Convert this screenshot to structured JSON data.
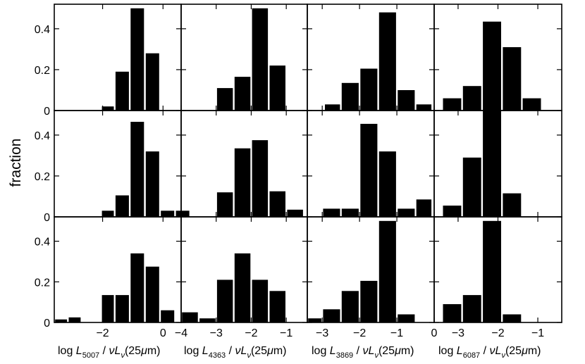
{
  "chart_data": {
    "type": "bar",
    "layout": "3x4 grid of histograms, shared y-axis per row and shared x-axis per column",
    "ylabel": "fraction",
    "ylim": [
      0,
      0.52
    ],
    "yticks": [
      0,
      0.2,
      0.4
    ],
    "ytick_labels": [
      "0",
      "0.2",
      "0.4"
    ],
    "grid": false,
    "columns": [
      {
        "xlabel": {
          "prefix": "log",
          "line": "L",
          "line_sub": "5007",
          "slash": "/",
          "nu": "ν",
          "lnu": "L",
          "lnu_sub": "ν",
          "band": "(25",
          "mu": "μ",
          "band_end": "m)"
        },
        "xlim": [
          -3.6,
          0.6
        ],
        "xticks": [
          -2,
          0
        ],
        "xtick_labels": [
          "−2",
          "0"
        ]
      },
      {
        "xlabel": {
          "prefix": "log",
          "line": "L",
          "line_sub": "4363",
          "slash": "/",
          "nu": "ν",
          "lnu": "L",
          "lnu_sub": "ν",
          "band": "(25",
          "mu": "μ",
          "band_end": "m)"
        },
        "xlim": [
          -4.0,
          -0.4
        ],
        "xticks": [
          -4,
          -3,
          -2,
          -1
        ],
        "xtick_labels": [
          "−4",
          "−3",
          "−2",
          "−1"
        ]
      },
      {
        "xlabel": {
          "prefix": "log",
          "line": "L",
          "line_sub": "3869",
          "slash": "/",
          "nu": "ν",
          "lnu": "L",
          "lnu_sub": "ν",
          "band": "(25",
          "mu": "μ",
          "band_end": "m)"
        },
        "xlim": [
          -3.4,
          0.0
        ],
        "xticks": [
          -3,
          -2,
          -1,
          0
        ],
        "xtick_labels": [
          "−3",
          "−2",
          "−1",
          "0"
        ]
      },
      {
        "xlabel": {
          "prefix": "log",
          "line": "L",
          "line_sub": "6087",
          "slash": "/",
          "nu": "ν",
          "lnu": "L",
          "lnu_sub": "ν",
          "band": "(25",
          "mu": "μ",
          "band_end": "m)"
        },
        "xlim": [
          -3.6,
          -0.4
        ],
        "xticks": [
          -3,
          -2,
          -1
        ],
        "xtick_labels": [
          "−3",
          "−2",
          "−1"
        ]
      }
    ],
    "panels": [
      [
        {
          "bins": [
            [
              -2.05,
              -1.6,
              0.02
            ],
            [
              -1.6,
              -1.1,
              0.19
            ],
            [
              -1.1,
              -0.6,
              0.5
            ],
            [
              -0.6,
              -0.1,
              0.28
            ]
          ]
        },
        {
          "bins": [
            [
              -3.0,
              -2.5,
              0.11
            ],
            [
              -2.5,
              -2.0,
              0.165
            ],
            [
              -2.0,
              -1.5,
              0.5
            ],
            [
              -1.5,
              -1.0,
              0.22
            ]
          ]
        },
        {
          "bins": [
            [
              -2.95,
              -2.5,
              0.03
            ],
            [
              -2.5,
              -2.0,
              0.135
            ],
            [
              -2.0,
              -1.5,
              0.205
            ],
            [
              -1.5,
              -1.0,
              0.48
            ],
            [
              -1.0,
              -0.5,
              0.1
            ],
            [
              -0.5,
              -0.05,
              0.03
            ]
          ]
        },
        {
          "bins": [
            [
              -3.4,
              -2.9,
              0.06
            ],
            [
              -2.9,
              -2.4,
              0.12
            ],
            [
              -2.4,
              -1.9,
              0.435
            ],
            [
              -1.9,
              -1.4,
              0.31
            ],
            [
              -1.4,
              -0.9,
              0.06
            ]
          ]
        }
      ],
      [
        {
          "bins": [
            [
              -2.05,
              -1.6,
              0.03
            ],
            [
              -1.6,
              -1.1,
              0.105
            ],
            [
              -1.1,
              -0.6,
              0.465
            ],
            [
              -0.6,
              -0.1,
              0.32
            ],
            [
              -0.1,
              0.4,
              0.03
            ],
            [
              0.4,
              0.9,
              0.03
            ]
          ]
        },
        {
          "bins": [
            [
              -3.0,
              -2.5,
              0.12
            ],
            [
              -2.5,
              -2.0,
              0.335
            ],
            [
              -2.0,
              -1.5,
              0.375
            ],
            [
              -1.5,
              -1.0,
              0.125
            ],
            [
              -1.0,
              -0.5,
              0.035
            ]
          ]
        },
        {
          "bins": [
            [
              -3.0,
              -2.5,
              0.04
            ],
            [
              -2.5,
              -2.0,
              0.04
            ],
            [
              -2.0,
              -1.5,
              0.455
            ],
            [
              -1.5,
              -1.0,
              0.32
            ],
            [
              -1.0,
              -0.5,
              0.04
            ],
            [
              -0.5,
              -0.05,
              0.085
            ]
          ]
        },
        {
          "bins": [
            [
              -3.4,
              -2.9,
              0.055
            ],
            [
              -2.9,
              -2.4,
              0.29
            ],
            [
              -2.4,
              -1.9,
              0.52
            ],
            [
              -1.9,
              -1.4,
              0.115
            ]
          ]
        }
      ],
      [
        {
          "bins": [
            [
              -3.6,
              -3.15,
              0.015
            ],
            [
              -3.15,
              -2.7,
              0.025
            ],
            [
              -2.05,
              -1.6,
              0.135
            ],
            [
              -1.6,
              -1.1,
              0.135
            ],
            [
              -1.1,
              -0.6,
              0.34
            ],
            [
              -0.6,
              -0.1,
              0.275
            ],
            [
              -0.1,
              0.4,
              0.06
            ]
          ]
        },
        {
          "bins": [
            [
              -4.0,
              -3.5,
              0.05
            ],
            [
              -3.5,
              -3.0,
              0.02
            ],
            [
              -3.0,
              -2.5,
              0.21
            ],
            [
              -2.5,
              -2.0,
              0.34
            ],
            [
              -2.0,
              -1.5,
              0.21
            ],
            [
              -1.5,
              -1.0,
              0.155
            ]
          ]
        },
        {
          "bins": [
            [
              -3.4,
              -3.0,
              0.02
            ],
            [
              -3.0,
              -2.5,
              0.065
            ],
            [
              -2.5,
              -2.0,
              0.155
            ],
            [
              -2.0,
              -1.5,
              0.205
            ],
            [
              -1.5,
              -1.0,
              0.5
            ],
            [
              -1.0,
              -0.5,
              0.04
            ]
          ]
        },
        {
          "bins": [
            [
              -3.4,
              -2.9,
              0.09
            ],
            [
              -2.9,
              -2.4,
              0.135
            ],
            [
              -2.4,
              -1.9,
              0.5
            ],
            [
              -1.9,
              -1.4,
              0.04
            ]
          ]
        }
      ]
    ]
  }
}
